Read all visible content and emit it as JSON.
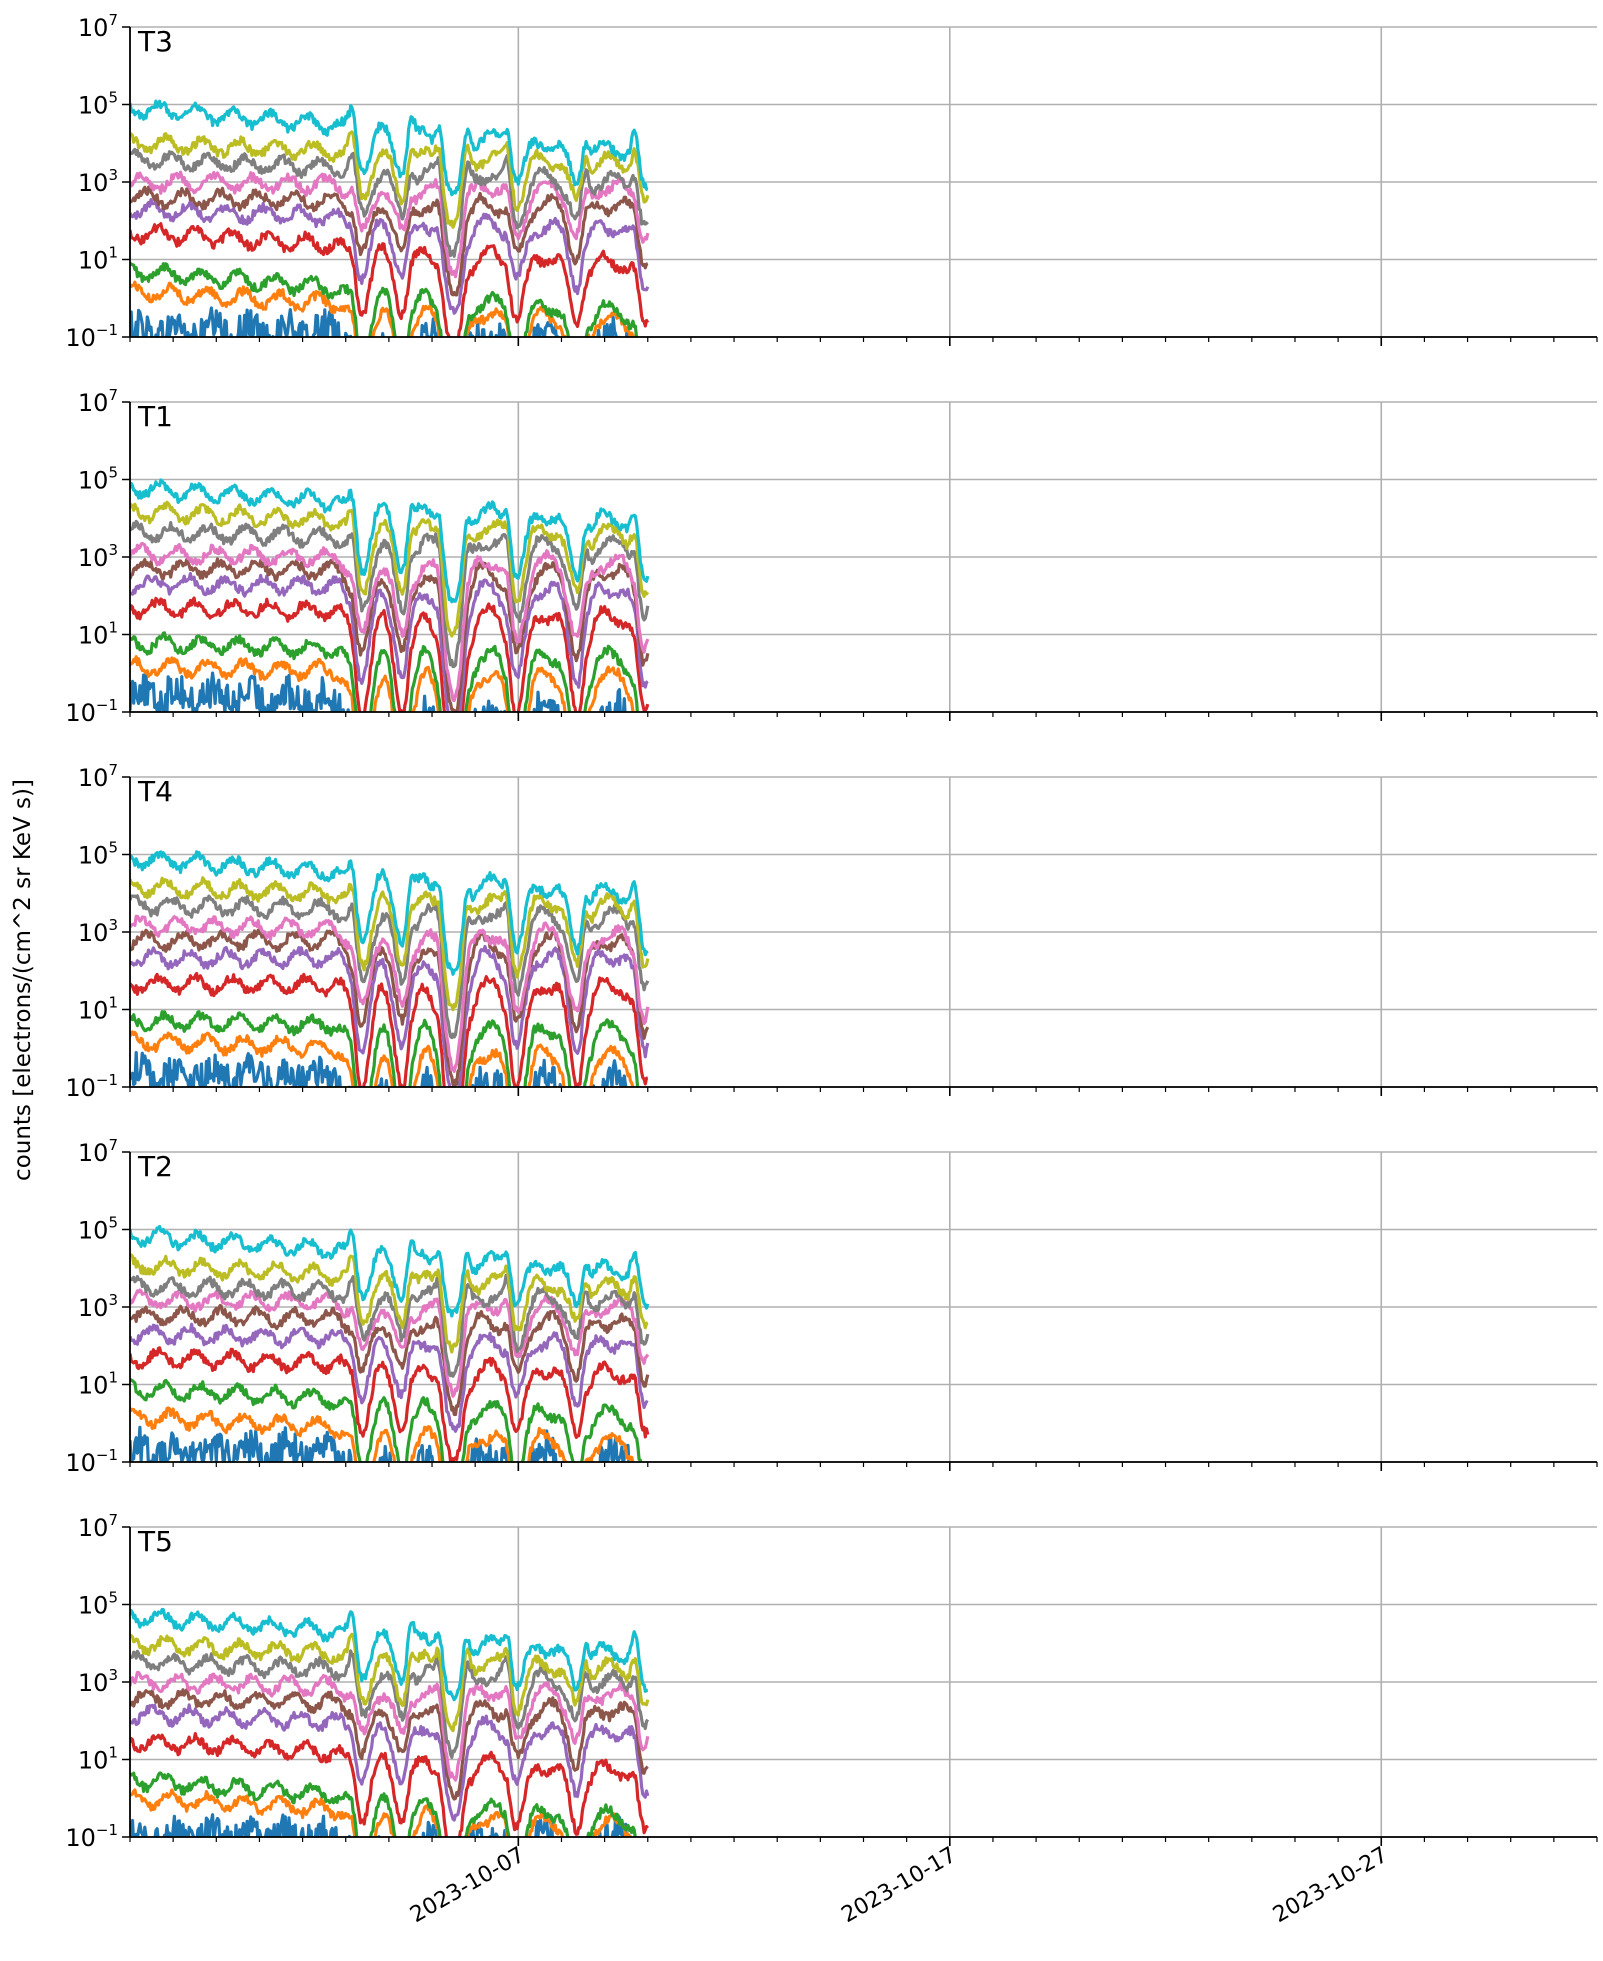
{
  "figure": {
    "ylabel": "counts [electrons/(cm^2 sr KeV s)]",
    "x_tick_labels": [
      "2023-10-07",
      "2023-10-17",
      "2023-10-27"
    ],
    "y_tick_labels": [
      {
        "base": "10",
        "exp": "7"
      },
      {
        "base": "10",
        "exp": "5"
      },
      {
        "base": "10",
        "exp": "3"
      },
      {
        "base": "10",
        "exp": "1"
      },
      {
        "base": "10",
        "exp": "−1"
      }
    ]
  },
  "chart_data": {
    "type": "line",
    "yscale": "log",
    "xlim": [
      "2023-09-28T00:00",
      "2023-11-01T00:00"
    ],
    "ylim": [
      0.1,
      10000000
    ],
    "x_ticks": [
      "2023-10-07",
      "2023-10-17",
      "2023-10-27"
    ],
    "x_minor_tick_interval_days": 1,
    "y_ticks": [
      0.1,
      10,
      1000,
      100000,
      10000000
    ],
    "grid": true,
    "legend": false,
    "data_end": "2023-10-10T00:00",
    "spike_dates": [
      "2023-10-03T04:00",
      "2023-10-04T12:00",
      "2023-10-05T04:00",
      "2023-10-05T19:00",
      "2023-10-06T18:00",
      "2023-10-08T13:00",
      "2023-10-09T17:00"
    ],
    "channel_colors": [
      "#1f77b4",
      "#ff7f0e",
      "#2ca02c",
      "#d62728",
      "#9467bd",
      "#8c564b",
      "#e377c2",
      "#7f7f7f",
      "#bcbd22",
      "#17becf"
    ],
    "panels": [
      {
        "title": "T3",
        "channel_start_values": [
          0.15,
          1.5,
          5,
          50,
          200,
          400,
          1000,
          4000,
          10000,
          80000
        ],
        "channel_end_values": [
          0.1,
          0.25,
          0.4,
          8,
          60,
          250,
          700,
          1000,
          3000,
          6000
        ]
      },
      {
        "title": "T1",
        "channel_start_values": [
          0.3,
          1.5,
          6,
          50,
          200,
          500,
          1200,
          4500,
          15000,
          60000
        ],
        "channel_end_values": [
          0.1,
          0.8,
          2.5,
          30,
          150,
          450,
          700,
          2000,
          4000,
          8000
        ]
      },
      {
        "title": "T4",
        "channel_start_values": [
          0.2,
          1.5,
          5,
          45,
          200,
          600,
          1500,
          5000,
          15000,
          80000
        ],
        "channel_end_values": [
          0.15,
          0.6,
          3,
          40,
          250,
          600,
          800,
          2500,
          5000,
          10000
        ]
      },
      {
        "title": "T2",
        "channel_start_values": [
          0.2,
          1.5,
          8,
          50,
          200,
          600,
          1500,
          3500,
          12000,
          70000
        ],
        "channel_end_values": [
          0.15,
          0.3,
          1.5,
          20,
          120,
          400,
          1000,
          1500,
          3000,
          8000
        ]
      },
      {
        "title": "T5",
        "channel_start_values": [
          0.1,
          1,
          3,
          30,
          150,
          400,
          1000,
          3500,
          10000,
          50000
        ],
        "channel_end_values": [
          0.1,
          0.2,
          0.3,
          5,
          50,
          180,
          500,
          1000,
          2000,
          5000
        ]
      }
    ]
  }
}
